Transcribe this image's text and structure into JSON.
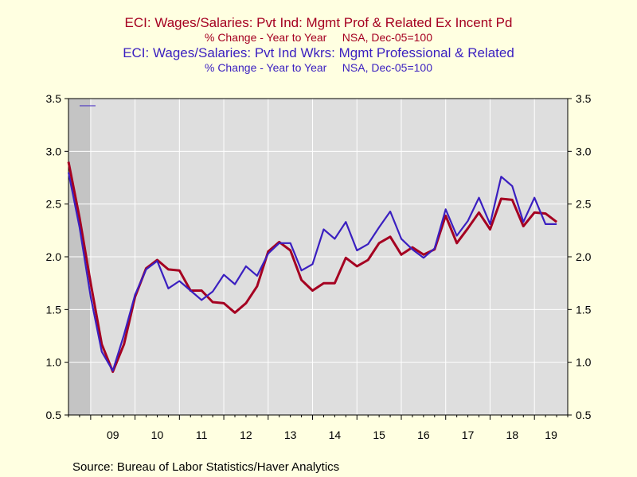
{
  "titles": {
    "series1_title": "ECI: Wages/Salaries: Pvt Ind: Mgmt Prof & Related Ex Incent Pd",
    "series1_sub": "% Change - Year to Year     NSA, Dec-05=100",
    "series2_title": "ECI: Wages/Salaries: Pvt Ind Wkrs: Mgmt Professional & Related",
    "series2_sub": "% Change - Year to Year     NSA, Dec-05=100"
  },
  "source": "Source:  Bureau of Labor Statistics/Haver Analytics",
  "colors": {
    "series1": "#a50021",
    "series2": "#3a1fc0",
    "plot_bg": "#dedede",
    "recession": "#c4c4c4",
    "grid": "#ffffff",
    "page_bg": "#ffffe1"
  },
  "chart_data": {
    "type": "line",
    "x_start": 2008.5,
    "x_end": 2019.75,
    "xtick_labels": [
      "09",
      "10",
      "11",
      "12",
      "13",
      "14",
      "15",
      "16",
      "17",
      "18",
      "19"
    ],
    "ylim": [
      0.5,
      3.5
    ],
    "yticks": [
      "0.5",
      "1.0",
      "1.5",
      "2.0",
      "2.5",
      "3.0",
      "3.5"
    ],
    "recession": [
      2008.5,
      2009.0
    ],
    "series": [
      {
        "name": "ECI: Wages/Salaries: Pvt Ind: Mgmt Prof & Related Ex Incent Pd",
        "color": "#a50021",
        "values": [
          2.9,
          2.37,
          1.75,
          1.17,
          0.91,
          1.17,
          1.62,
          1.89,
          1.97,
          1.88,
          1.87,
          1.68,
          1.68,
          1.57,
          1.56,
          1.47,
          1.56,
          1.72,
          2.05,
          2.14,
          2.06,
          1.78,
          1.68,
          1.75,
          1.75,
          1.99,
          1.91,
          1.97,
          2.13,
          2.19,
          2.02,
          2.09,
          2.02,
          2.07,
          2.39,
          2.13,
          2.27,
          2.42,
          2.26,
          2.55,
          2.54,
          2.29,
          2.42,
          2.41,
          2.33
        ]
      },
      {
        "name": "ECI: Wages/Salaries: Pvt Ind Wkrs: Mgmt Professional & Related",
        "color": "#3a1fc0",
        "values": [
          2.8,
          2.28,
          1.62,
          1.1,
          0.92,
          1.26,
          1.64,
          1.88,
          1.96,
          1.7,
          1.77,
          1.68,
          1.59,
          1.67,
          1.83,
          1.74,
          1.91,
          1.82,
          2.03,
          2.13,
          2.13,
          1.87,
          1.93,
          2.26,
          2.17,
          2.33,
          2.06,
          2.12,
          2.28,
          2.43,
          2.17,
          2.07,
          1.99,
          2.08,
          2.45,
          2.2,
          2.34,
          2.56,
          2.31,
          2.76,
          2.67,
          2.33,
          2.56,
          2.31,
          2.31
        ]
      }
    ]
  }
}
